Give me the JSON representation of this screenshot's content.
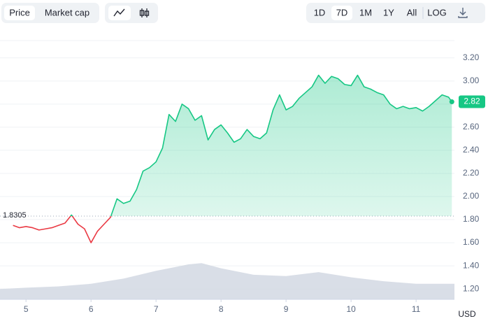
{
  "toolbar": {
    "views": [
      "Price",
      "Market cap"
    ],
    "ranges": [
      "1D",
      "7D",
      "1M",
      "1Y",
      "All",
      "LOG"
    ]
  },
  "chart_data": {
    "type": "line",
    "ylabel": "USD",
    "x": [
      4.8,
      4.9,
      5.0,
      5.1,
      5.2,
      5.3,
      5.4,
      5.5,
      5.6,
      5.7,
      5.8,
      5.9,
      6.0,
      6.1,
      6.2,
      6.3,
      6.4,
      6.5,
      6.6,
      6.7,
      6.8,
      6.9,
      7.0,
      7.1,
      7.2,
      7.3,
      7.4,
      7.5,
      7.6,
      7.7,
      7.8,
      7.9,
      8.0,
      8.1,
      8.2,
      8.3,
      8.4,
      8.5,
      8.6,
      8.7,
      8.8,
      8.9,
      9.0,
      9.1,
      9.2,
      9.3,
      9.4,
      9.5,
      9.6,
      9.7,
      9.8,
      9.9,
      10.0,
      10.1,
      10.2,
      10.3,
      10.4,
      10.5,
      10.6,
      10.7,
      10.8,
      10.9,
      11.0,
      11.1,
      11.2,
      11.3,
      11.4,
      11.5,
      11.55
    ],
    "values": [
      1.75,
      1.73,
      1.74,
      1.73,
      1.71,
      1.72,
      1.73,
      1.75,
      1.77,
      1.84,
      1.76,
      1.72,
      1.6,
      1.7,
      1.76,
      1.82,
      1.98,
      1.94,
      1.96,
      2.06,
      2.22,
      2.25,
      2.3,
      2.42,
      2.71,
      2.65,
      2.8,
      2.76,
      2.66,
      2.7,
      2.49,
      2.58,
      2.62,
      2.55,
      2.47,
      2.5,
      2.58,
      2.52,
      2.5,
      2.55,
      2.75,
      2.88,
      2.75,
      2.78,
      2.85,
      2.9,
      2.95,
      3.05,
      2.98,
      3.04,
      3.02,
      2.97,
      2.96,
      3.05,
      2.95,
      2.93,
      2.9,
      2.88,
      2.8,
      2.76,
      2.78,
      2.76,
      2.77,
      2.74,
      2.78,
      2.83,
      2.88,
      2.86,
      2.82
    ],
    "color": "#16c784",
    "down_color": "#ea3943",
    "reference_line": 1.8305,
    "last_value": 2.82,
    "xlim": [
      4.6,
      11.59
    ],
    "xticks": [
      5,
      6,
      7,
      8,
      9,
      10,
      11
    ],
    "ylim": [
      1.11,
      3.35
    ],
    "yticks": [
      {
        "value": 1.2,
        "label": "1.20"
      },
      {
        "value": 1.4,
        "label": "1.40"
      },
      {
        "value": 1.6,
        "label": "1.60"
      },
      {
        "value": 1.8,
        "label": "1.80"
      },
      {
        "value": 2.0,
        "label": "2.00"
      },
      {
        "value": 2.2,
        "label": "2.20"
      },
      {
        "value": 2.4,
        "label": "2.40"
      },
      {
        "value": 2.6,
        "label": "2.60"
      },
      {
        "value": 2.8,
        "label": "2.80"
      },
      {
        "value": 3.0,
        "label": "3.00"
      },
      {
        "value": 3.2,
        "label": "3.20"
      }
    ],
    "grid": true,
    "volume": {
      "x": [
        4.6,
        5.0,
        5.5,
        6.0,
        6.5,
        7.0,
        7.5,
        7.7,
        8.0,
        8.5,
        9.0,
        9.5,
        10.0,
        10.5,
        11.0,
        11.59
      ],
      "values": [
        4,
        4.5,
        5,
        6,
        8,
        11,
        13.5,
        14,
        12,
        9.5,
        9,
        10.5,
        8.5,
        7,
        6,
        6
      ],
      "color": "#d2d8e3",
      "y2lim": [
        0,
        100
      ]
    }
  }
}
